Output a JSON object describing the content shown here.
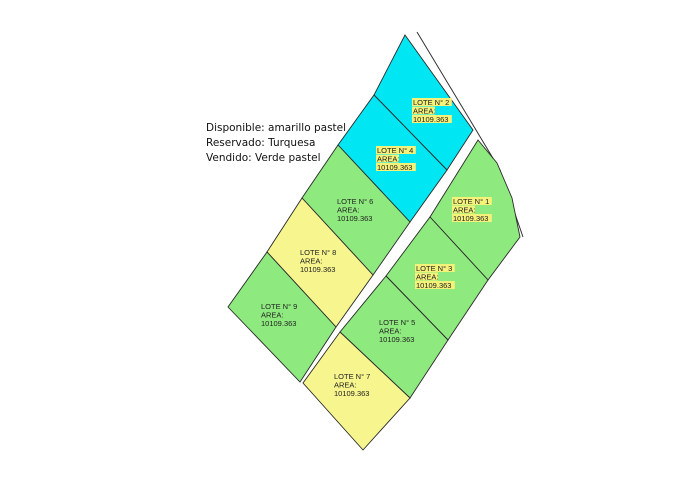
{
  "legend": [
    "Disponible: amarillo pastel",
    "Reservado: Turquesa",
    "Vendido: Verde pastel"
  ],
  "status_colors": {
    "disponible": "#f7f58e",
    "reservado": "#00e6f2",
    "vendido": "#8eea7e"
  },
  "lots": [
    {
      "id": "1",
      "title": "LOTE N° 1",
      "area_label": "AREA:",
      "area": "10109.363",
      "status": "vendido"
    },
    {
      "id": "2",
      "title": "LOTE N° 2",
      "area_label": "AREA:",
      "area": "10109.363",
      "status": "reservado"
    },
    {
      "id": "3",
      "title": "LOTE N° 3",
      "area_label": "AREA:",
      "area": "10109.363",
      "status": "vendido"
    },
    {
      "id": "4",
      "title": "LOTE N° 4",
      "area_label": "AREA:",
      "area": "10109.363",
      "status": "reservado"
    },
    {
      "id": "5",
      "title": "LOTE N° 5",
      "area_label": "AREA:",
      "area": "10109.363",
      "status": "vendido"
    },
    {
      "id": "6",
      "title": "LOTE N° 6",
      "area_label": "AREA:",
      "area": "10109.363",
      "status": "vendido"
    },
    {
      "id": "7",
      "title": "LOTE N° 7",
      "area_label": "AREA:",
      "area": "10109.363",
      "status": "disponible"
    },
    {
      "id": "8",
      "title": "LOTE N° 8",
      "area_label": "AREA:",
      "area": "10109.363",
      "status": "disponible"
    },
    {
      "id": "9",
      "title": "LOTE N° 9",
      "area_label": "AREA:",
      "area": "10109.363",
      "status": "vendido"
    }
  ]
}
